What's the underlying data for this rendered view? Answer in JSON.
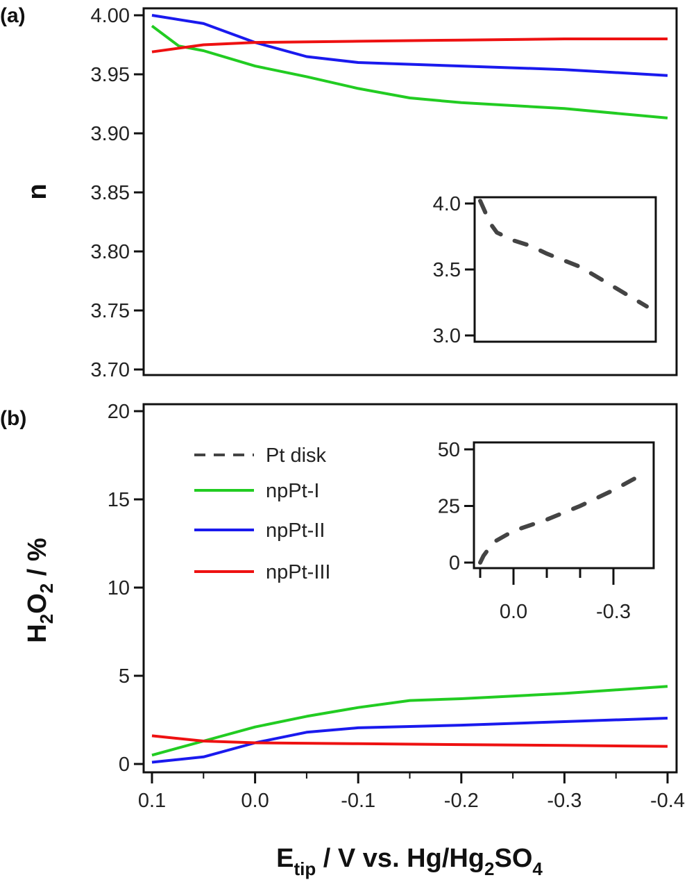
{
  "chart_data": [
    {
      "id": "a",
      "type": "line",
      "panel_label": "(a)",
      "ylabel": "n",
      "ylim": [
        3.7,
        4.0
      ],
      "yticks": [
        "3.70",
        "3.75",
        "3.80",
        "3.85",
        "3.90",
        "3.95",
        "4.00"
      ],
      "xlim": [
        0.1,
        -0.4
      ],
      "series": [
        {
          "name": "npPt-I",
          "color": "#22cc22",
          "x": [
            0.1,
            0.074,
            0.05,
            0.0,
            -0.05,
            -0.1,
            -0.15,
            -0.2,
            -0.3,
            -0.4
          ],
          "y": [
            3.991,
            3.974,
            3.97,
            3.957,
            3.948,
            3.938,
            3.93,
            3.926,
            3.921,
            3.913
          ]
        },
        {
          "name": "npPt-II",
          "color": "#1a1aee",
          "x": [
            0.1,
            0.05,
            0.0,
            -0.05,
            -0.1,
            -0.2,
            -0.3,
            -0.4
          ],
          "y": [
            4.0,
            3.993,
            3.977,
            3.965,
            3.96,
            3.957,
            3.954,
            3.949
          ]
        },
        {
          "name": "npPt-III",
          "color": "#ee1111",
          "x": [
            0.1,
            0.05,
            0.0,
            -0.1,
            -0.2,
            -0.3,
            -0.4
          ],
          "y": [
            3.969,
            3.975,
            3.977,
            3.978,
            3.979,
            3.98,
            3.98
          ]
        }
      ],
      "inset": {
        "ylim": [
          3.0,
          4.0
        ],
        "yticks": [
          "3.0",
          "3.5",
          "4.0"
        ],
        "xlim": [
          0.1,
          -0.4
        ],
        "series": [
          {
            "name": "Pt disk",
            "color": "#444444",
            "dashed": true,
            "x": [
              0.1,
              0.07,
              0.05,
              0.0,
              -0.05,
              -0.1,
              -0.2,
              -0.3,
              -0.4
            ],
            "y": [
              4.02,
              3.85,
              3.78,
              3.72,
              3.68,
              3.62,
              3.52,
              3.37,
              3.22
            ]
          }
        ]
      }
    },
    {
      "id": "b",
      "type": "line",
      "panel_label": "(b)",
      "ylabel_main": "H",
      "ylabel_sub1": "2",
      "ylabel_mid": "O",
      "ylabel_sub2": "2",
      "ylabel_end": " / %",
      "ylim": [
        0,
        20
      ],
      "yticks": [
        "0",
        "5",
        "10",
        "15",
        "20"
      ],
      "xlim": [
        0.1,
        -0.4
      ],
      "xticks": [
        "0.1",
        "0.0",
        "-0.1",
        "-0.2",
        "-0.3",
        "-0.4"
      ],
      "xlabel_main": "E",
      "xlabel_sub": "tip",
      "xlabel_mid": " / V vs. Hg/Hg",
      "xlabel_sub2": "2",
      "xlabel_end": "SO",
      "xlabel_sub3": "4",
      "series": [
        {
          "name": "npPt-I",
          "color": "#22cc22",
          "x": [
            0.1,
            0.05,
            0.0,
            -0.05,
            -0.1,
            -0.15,
            -0.2,
            -0.3,
            -0.4
          ],
          "y": [
            0.5,
            1.3,
            2.1,
            2.7,
            3.2,
            3.6,
            3.7,
            4.0,
            4.4
          ]
        },
        {
          "name": "npPt-II",
          "color": "#1a1aee",
          "x": [
            0.1,
            0.05,
            0.0,
            -0.05,
            -0.1,
            -0.2,
            -0.3,
            -0.4
          ],
          "y": [
            0.1,
            0.4,
            1.2,
            1.8,
            2.05,
            2.2,
            2.4,
            2.6
          ]
        },
        {
          "name": "npPt-III",
          "color": "#ee1111",
          "x": [
            0.1,
            0.05,
            0.0,
            -0.1,
            -0.2,
            -0.3,
            -0.4
          ],
          "y": [
            1.6,
            1.3,
            1.2,
            1.15,
            1.1,
            1.05,
            1.0
          ]
        }
      ],
      "legend": [
        {
          "label": "Pt disk",
          "color": "#444444",
          "dashed": true
        },
        {
          "label": "npPt-I",
          "color": "#22cc22"
        },
        {
          "label": "npPt-II",
          "color": "#1a1aee"
        },
        {
          "label": "npPt-III",
          "color": "#ee1111"
        }
      ],
      "legend_position": "upper-left",
      "inset": {
        "ylim": [
          0,
          50
        ],
        "yticks": [
          "0",
          "25",
          "50"
        ],
        "xlim": [
          0.1,
          -0.4
        ],
        "xticks": [
          "0.0",
          "-0.3"
        ],
        "series": [
          {
            "name": "Pt disk",
            "color": "#444444",
            "dashed": true,
            "x": [
              0.1,
              0.09,
              0.06,
              0.0,
              -0.1,
              -0.2,
              -0.3,
              -0.4
            ],
            "y": [
              0,
              3,
              9,
              14,
              19,
              25,
              32,
              40
            ]
          }
        ]
      }
    }
  ]
}
